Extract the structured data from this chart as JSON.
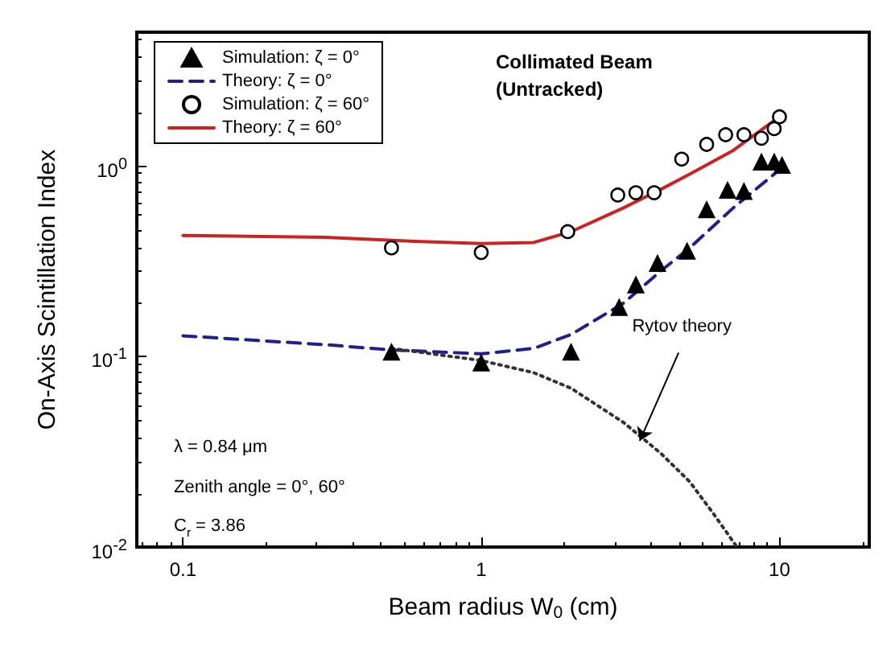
{
  "chart_data": {
    "type": "line",
    "xlabel": "Beam radius W$_{0}$ (cm)",
    "ylabel": "On-Axis Scintillation Index",
    "log": "xy",
    "xlim": [
      0.07,
      20
    ],
    "xticks": [
      0.1,
      1,
      10
    ],
    "ylim": [
      0.01,
      5
    ],
    "yticks": [
      {
        "value": 0.01,
        "label": "10$^{-2}$"
      },
      {
        "value": 0.1,
        "label": "10$^{-1}$"
      },
      {
        "value": 1,
        "label": "10$^{0}$"
      }
    ],
    "grid": false,
    "legend": "top left",
    "series": [
      {
        "name": "Simulation: ζ = 0°",
        "type": "scatter",
        "marker": "triangle",
        "color": "#000000",
        "x": [
          0.5,
          1,
          2,
          2.9,
          3.3,
          3.9,
          4.9,
          5.7,
          6.7,
          7.6,
          8.7,
          9.6,
          10.2
        ],
        "values": [
          0.105,
          0.092,
          0.105,
          0.18,
          0.236,
          0.306,
          0.355,
          0.585,
          0.74,
          0.73,
          1.04,
          1.04,
          1.0
        ]
      },
      {
        "name": "Theory: ζ = 0°",
        "type": "line",
        "line_style": "dashed",
        "marker": "none",
        "color": "#1f1f8f",
        "x": [
          0.1,
          0.3,
          0.5,
          1,
          1.5,
          2,
          2.5,
          3,
          4,
          5,
          7,
          10
        ],
        "values": [
          0.128,
          0.115,
          0.108,
          0.103,
          0.11,
          0.13,
          0.16,
          0.19,
          0.28,
          0.37,
          0.6,
          0.95
        ]
      },
      {
        "name": "Simulation: ζ = 60°",
        "type": "scatter",
        "marker": "circle",
        "color": "#000000",
        "x": [
          0.5,
          1,
          1.95,
          2.87,
          3.3,
          3.8,
          4.7,
          5.7,
          6.6,
          7.6,
          8.7,
          9.6,
          10
        ],
        "values": [
          0.37,
          0.35,
          0.45,
          0.7,
          0.72,
          0.72,
          1.08,
          1.29,
          1.45,
          1.45,
          1.39,
          1.56,
          1.8
        ]
      },
      {
        "name": "Theory: ζ = 60°",
        "type": "line",
        "line_style": "solid",
        "marker": "none",
        "color": "#cc2222",
        "x": [
          0.1,
          0.3,
          0.6,
          1,
          1.5,
          2,
          3,
          4,
          5,
          7,
          10
        ],
        "values": [
          0.43,
          0.42,
          0.4,
          0.39,
          0.395,
          0.45,
          0.6,
          0.75,
          0.9,
          1.2,
          1.8
        ]
      },
      {
        "type": "line",
        "line_style": "dotted",
        "marker": "none",
        "color": "#333333",
        "x": [
          0.5,
          1,
          1.5,
          2,
          3,
          4,
          5,
          6,
          7.2
        ],
        "values": [
          0.11,
          0.095,
          0.082,
          0.068,
          0.045,
          0.031,
          0.022,
          0.015,
          0.01
        ]
      }
    ],
    "annotations": [
      {
        "text": "Rytov theory",
        "x": 3.4,
        "y": 0.036
      },
      "Collimated Beam\n(Untracked)",
      "λ = 0.84 μm",
      "Zenith angle = 0°, 60°",
      "C$_{r}$ = 3.86"
    ]
  }
}
